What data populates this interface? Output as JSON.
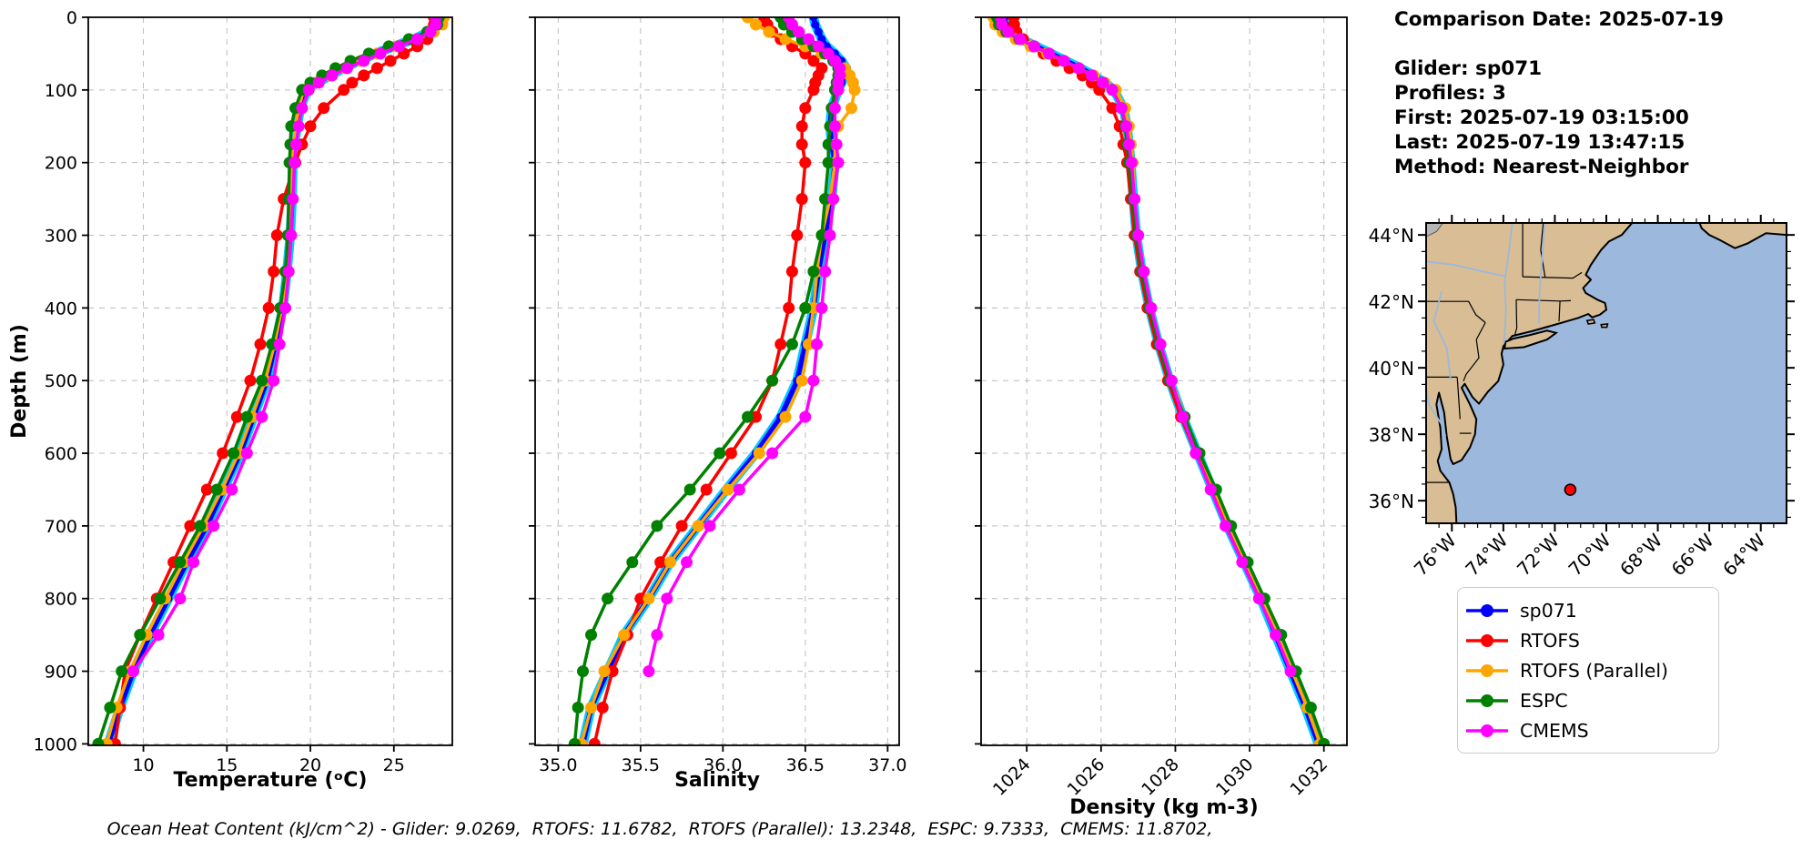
{
  "info_panel": {
    "comparison_date": "Comparison Date: 2025-07-19",
    "glider": "Glider: sp071",
    "profiles": "Profiles: 3",
    "first": "First: 2025-07-19 03:15:00",
    "last": "Last: 2025-07-19 13:47:15",
    "method": "Method: Nearest-Neighbor"
  },
  "footer": "Ocean Heat Content (kJ/cm^2) - Glider: 9.0269,  RTOFS: 11.6782,  RTOFS (Parallel): 13.2348,  ESPC: 9.7333,  CMEMS: 11.8702,",
  "legend": {
    "entries": [
      {
        "label": "sp071",
        "color": "#0000ff"
      },
      {
        "label": "RTOFS",
        "color": "#ff0000"
      },
      {
        "label": "RTOFS (Parallel)",
        "color": "#ffa500"
      },
      {
        "label": "ESPC",
        "color": "#008000"
      },
      {
        "label": "CMEMS",
        "color": "#ff00ff"
      }
    ]
  },
  "map": {
    "extent": {
      "lon": [
        -77,
        -63
      ],
      "lat": [
        35.32,
        44.36
      ]
    },
    "lat_ticks": [
      44,
      42,
      40,
      38,
      36
    ],
    "lat_labels": [
      "44°N",
      "42°N",
      "40°N",
      "38°N",
      "36°N"
    ],
    "lon_ticks": [
      -76,
      -74,
      -72,
      -70,
      -68,
      -66,
      -64
    ],
    "lon_labels": [
      "76°W",
      "74°W",
      "72°W",
      "70°W",
      "68°W",
      "66°W",
      "64°W"
    ],
    "marker": {
      "lon": -71.4,
      "lat": 36.33,
      "color": "#ff0000"
    },
    "land_color": "#d8bd95",
    "ocean_color": "#9cb8dc",
    "lake_color": "#b5b5b5"
  },
  "chart_data": {
    "type": "line",
    "subtype": "ocean-depth-profiles",
    "ylabel": "Depth (m)",
    "ylim": [
      0,
      1002
    ],
    "yticks": [
      0,
      100,
      200,
      300,
      400,
      500,
      600,
      700,
      800,
      900,
      1000
    ],
    "grid": true,
    "depths": [
      0,
      10,
      20,
      30,
      40,
      50,
      60,
      70,
      80,
      90,
      100,
      125,
      150,
      175,
      200,
      250,
      300,
      350,
      400,
      450,
      500,
      550,
      600,
      650,
      700,
      750,
      800,
      850,
      900,
      950,
      1000
    ],
    "panels": [
      {
        "xlabel": "Temperature (ᵒC)",
        "xlim": [
          6.7,
          28.5
        ],
        "xticks": [
          10,
          15,
          20,
          25
        ],
        "xtick_labels": [
          "10",
          "15",
          "20",
          "25"
        ],
        "rotate_xticks": 0,
        "series": [
          {
            "name": "sp071",
            "color": "#0000ff",
            "halo": "#00ccff",
            "lw": 5.5,
            "marker_r": 4.5,
            "values": [
              27.6,
              27.5,
              27.1,
              26.2,
              25.0,
              23.9,
              22.9,
              22.0,
              21.2,
              20.4,
              19.8,
              19.4,
              19.2,
              19.05,
              18.95,
              18.9,
              18.8,
              18.6,
              18.35,
              17.9,
              17.4,
              16.6,
              15.8,
              14.8,
              13.8,
              12.6,
              11.5,
              10.4,
              9.4,
              8.6,
              7.9
            ]
          },
          {
            "name": "RTOFS",
            "color": "#ff0000",
            "lw": 3.5,
            "marker_r": 6.5,
            "values": [
              27.4,
              27.4,
              27.3,
              27.0,
              26.4,
              25.6,
              24.8,
              24.0,
              23.2,
              22.5,
              22.0,
              20.8,
              20.0,
              19.5,
              19.1,
              18.4,
              18.0,
              17.8,
              17.5,
              17.0,
              16.4,
              15.6,
              14.75,
              13.8,
              12.8,
              11.8,
              10.8,
              9.8,
              8.9,
              8.6,
              8.3
            ]
          },
          {
            "name": "RTOFS (Parallel)",
            "color": "#ffa500",
            "lw": 3.5,
            "marker_r": 6.5,
            "values": [
              28.0,
              27.9,
              27.4,
              26.4,
              25.2,
              24.0,
              23.0,
              22.1,
              21.2,
              20.3,
              19.6,
              19.3,
              19.1,
              19.0,
              18.9,
              18.85,
              18.78,
              18.58,
              18.3,
              17.85,
              17.3,
              16.5,
              15.7,
              14.7,
              13.6,
              12.4,
              11.3,
              10.2,
              9.2,
              8.4,
              7.8
            ]
          },
          {
            "name": "ESPC",
            "color": "#008000",
            "lw": 3.5,
            "marker_r": 6.5,
            "values": [
              27.7,
              27.6,
              27.0,
              25.9,
              24.7,
              23.5,
              22.4,
              21.5,
              20.7,
              20.0,
              19.5,
              19.1,
              18.85,
              18.8,
              18.75,
              18.7,
              18.65,
              18.5,
              18.2,
              17.7,
              17.1,
              16.2,
              15.4,
              14.4,
              13.4,
              12.2,
              11.0,
              9.8,
              8.7,
              8.0,
              7.3
            ]
          },
          {
            "name": "CMEMS",
            "color": "#ff00ff",
            "lw": 3.5,
            "marker_r": 6.5,
            "values": [
              27.5,
              27.5,
              27.2,
              26.4,
              25.3,
              24.2,
              23.2,
              22.2,
              21.3,
              20.5,
              19.9,
              19.5,
              19.3,
              19.15,
              19.05,
              18.95,
              18.85,
              18.7,
              18.5,
              18.15,
              17.8,
              17.1,
              16.2,
              15.3,
              14.2,
              13.0,
              12.2,
              10.9,
              9.4,
              null,
              null
            ]
          }
        ]
      },
      {
        "xlabel": "Salinity",
        "xlim": [
          34.86,
          37.07
        ],
        "xticks": [
          35.0,
          35.5,
          36.0,
          36.5,
          37.0
        ],
        "xtick_labels": [
          "35.0",
          "35.5",
          "36.0",
          "36.5",
          "37.0"
        ],
        "rotate_xticks": 0,
        "series": [
          {
            "name": "sp071",
            "color": "#0000ff",
            "halo": "#00ccff",
            "lw": 5.5,
            "marker_r": 4.5,
            "values": [
              36.55,
              36.56,
              36.58,
              36.6,
              36.63,
              36.68,
              36.72,
              36.75,
              36.74,
              36.72,
              36.7,
              36.66,
              36.65,
              36.66,
              36.68,
              36.66,
              36.62,
              36.58,
              36.55,
              36.5,
              36.45,
              36.35,
              36.2,
              36.02,
              35.85,
              35.68,
              35.55,
              35.4,
              35.3,
              35.2,
              35.15
            ]
          },
          {
            "name": "RTOFS",
            "color": "#ff0000",
            "lw": 3.5,
            "marker_r": 6.5,
            "values": [
              36.25,
              36.27,
              36.3,
              36.35,
              36.42,
              36.5,
              36.55,
              36.6,
              36.58,
              36.56,
              36.55,
              36.5,
              36.48,
              36.48,
              36.5,
              36.48,
              36.45,
              36.42,
              36.4,
              36.35,
              36.3,
              36.2,
              36.05,
              35.9,
              35.75,
              35.62,
              35.5,
              35.42,
              35.33,
              35.27,
              35.22
            ]
          },
          {
            "name": "RTOFS (Parallel)",
            "color": "#ffa500",
            "lw": 3.5,
            "marker_r": 6.5,
            "values": [
              36.15,
              36.2,
              36.28,
              36.38,
              36.5,
              36.6,
              36.68,
              36.74,
              36.77,
              36.79,
              36.8,
              36.78,
              36.7,
              36.68,
              36.68,
              36.65,
              36.6,
              36.57,
              36.55,
              36.52,
              36.48,
              36.38,
              36.22,
              36.03,
              35.85,
              35.68,
              35.55,
              35.4,
              35.28,
              35.2,
              35.14
            ]
          },
          {
            "name": "ESPC",
            "color": "#008000",
            "lw": 3.5,
            "marker_r": 6.5,
            "values": [
              36.35,
              36.37,
              36.42,
              36.48,
              36.55,
              36.62,
              36.67,
              36.7,
              36.7,
              36.69,
              36.68,
              36.66,
              36.65,
              36.64,
              36.64,
              36.62,
              36.6,
              36.55,
              36.5,
              36.42,
              36.3,
              36.15,
              35.98,
              35.8,
              35.6,
              35.45,
              35.3,
              35.2,
              35.15,
              35.12,
              35.1
            ]
          },
          {
            "name": "CMEMS",
            "color": "#ff00ff",
            "lw": 3.5,
            "marker_r": 6.5,
            "values": [
              36.4,
              36.42,
              36.46,
              36.52,
              36.58,
              36.64,
              36.68,
              36.71,
              36.71,
              36.7,
              36.7,
              36.68,
              36.68,
              36.69,
              36.7,
              36.67,
              36.65,
              36.62,
              36.6,
              36.57,
              36.55,
              36.5,
              36.3,
              36.1,
              35.92,
              35.78,
              35.66,
              35.6,
              35.55,
              null,
              null
            ]
          }
        ]
      },
      {
        "xlabel": "Density (kg m-3)",
        "xlim": [
          1022.77,
          1032.62
        ],
        "xticks": [
          1024,
          1026,
          1028,
          1030,
          1032
        ],
        "xtick_labels": [
          "1024",
          "1026",
          "1028",
          "1030",
          "1032"
        ],
        "rotate_xticks": 45,
        "series": [
          {
            "name": "sp071",
            "color": "#0000ff",
            "halo": "#00ccff",
            "lw": 5.5,
            "marker_r": 4.5,
            "values": [
              1023.4,
              1023.42,
              1023.55,
              1023.85,
              1024.25,
              1024.65,
              1025.05,
              1025.45,
              1025.8,
              1026.1,
              1026.35,
              1026.6,
              1026.7,
              1026.75,
              1026.8,
              1026.87,
              1026.95,
              1027.1,
              1027.3,
              1027.55,
              1027.85,
              1028.2,
              1028.6,
              1029.0,
              1029.4,
              1029.85,
              1030.3,
              1030.7,
              1031.1,
              1031.5,
              1031.85
            ]
          },
          {
            "name": "RTOFS",
            "color": "#ff0000",
            "lw": 3.5,
            "marker_r": 6.5,
            "values": [
              1023.65,
              1023.66,
              1023.72,
              1023.9,
              1024.15,
              1024.45,
              1024.8,
              1025.15,
              1025.5,
              1025.75,
              1025.95,
              1026.3,
              1026.5,
              1026.6,
              1026.7,
              1026.8,
              1026.9,
              1027.05,
              1027.25,
              1027.5,
              1027.8,
              1028.15,
              1028.55,
              1029.0,
              1029.45,
              1029.9,
              1030.35,
              1030.75,
              1031.15,
              1031.55,
              1031.9
            ]
          },
          {
            "name": "RTOFS (Parallel)",
            "color": "#ffa500",
            "lw": 3.5,
            "marker_r": 6.5,
            "values": [
              1023.1,
              1023.15,
              1023.35,
              1023.7,
              1024.1,
              1024.55,
              1025.0,
              1025.4,
              1025.8,
              1026.1,
              1026.4,
              1026.65,
              1026.75,
              1026.8,
              1026.85,
              1026.9,
              1027.0,
              1027.15,
              1027.35,
              1027.6,
              1027.9,
              1028.25,
              1028.65,
              1029.05,
              1029.45,
              1029.9,
              1030.35,
              1030.75,
              1031.15,
              1031.55,
              1031.9
            ]
          },
          {
            "name": "ESPC",
            "color": "#008000",
            "lw": 3.5,
            "marker_r": 6.5,
            "values": [
              1023.2,
              1023.25,
              1023.45,
              1023.8,
              1024.2,
              1024.6,
              1025.0,
              1025.4,
              1025.75,
              1026.05,
              1026.3,
              1026.55,
              1026.65,
              1026.7,
              1026.75,
              1026.85,
              1026.95,
              1027.1,
              1027.3,
              1027.55,
              1027.85,
              1028.25,
              1028.65,
              1029.1,
              1029.5,
              1029.95,
              1030.4,
              1030.85,
              1031.25,
              1031.65,
              1032.0
            ]
          },
          {
            "name": "CMEMS",
            "color": "#ff00ff",
            "lw": 3.5,
            "marker_r": 6.5,
            "values": [
              1023.3,
              1023.33,
              1023.5,
              1023.82,
              1024.2,
              1024.6,
              1025.0,
              1025.4,
              1025.75,
              1026.05,
              1026.3,
              1026.55,
              1026.68,
              1026.75,
              1026.82,
              1026.9,
              1027.0,
              1027.15,
              1027.35,
              1027.6,
              1027.9,
              1028.2,
              1028.55,
              1028.95,
              1029.35,
              1029.8,
              1030.25,
              1030.7,
              1031.1,
              null,
              null
            ]
          }
        ]
      }
    ]
  }
}
